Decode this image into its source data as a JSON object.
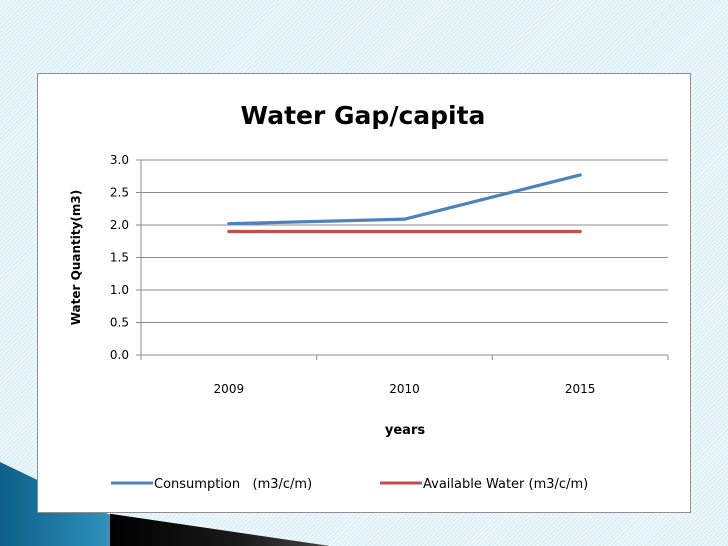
{
  "chart_data": {
    "type": "line",
    "title": "Water Gap/capita",
    "xlabel": "years",
    "ylabel": "Water Quantity(m3)",
    "categories": [
      "2009",
      "2010",
      "2015"
    ],
    "ylim": [
      0,
      3.0
    ],
    "yticks": [
      "0.0",
      "0.5",
      "1.0",
      "1.5",
      "2.0",
      "2.5",
      "3.0"
    ],
    "grid": true,
    "legend_position": "bottom",
    "series": [
      {
        "name": "Consumption   (m3/c/m)",
        "values": [
          2.02,
          2.09,
          2.77
        ],
        "color": "#4f81bd"
      },
      {
        "name": "Available Water (m3/c/m)",
        "values": [
          1.9,
          1.9,
          1.9
        ],
        "color": "#c0504d"
      }
    ]
  }
}
